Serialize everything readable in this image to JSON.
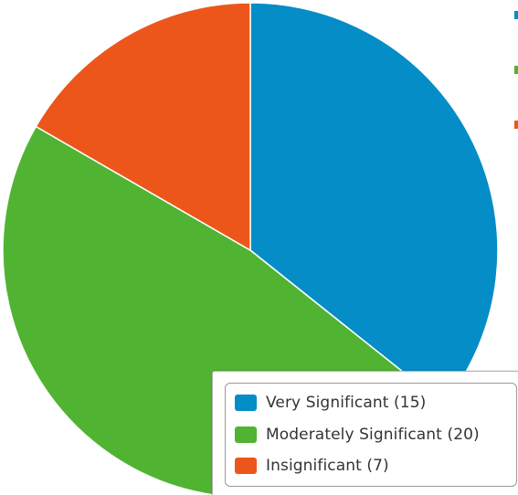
{
  "chart_data": {
    "type": "pie",
    "slices": [
      {
        "label": "Very Significant",
        "value": 15,
        "legend_text": "Very Significant (15)",
        "color": "#058DC7"
      },
      {
        "label": "Moderately Significant",
        "value": 20,
        "legend_text": "Moderately Significant (20)",
        "color": "#50B432"
      },
      {
        "label": "Insignificant",
        "value": 7,
        "legend_text": "Insignificant (7)",
        "color": "#ED561B"
      }
    ],
    "start_angle": "12 o'clock",
    "direction": "clockwise",
    "slice_border_color": "#ffffff",
    "legend_placement": "bottom-right"
  }
}
